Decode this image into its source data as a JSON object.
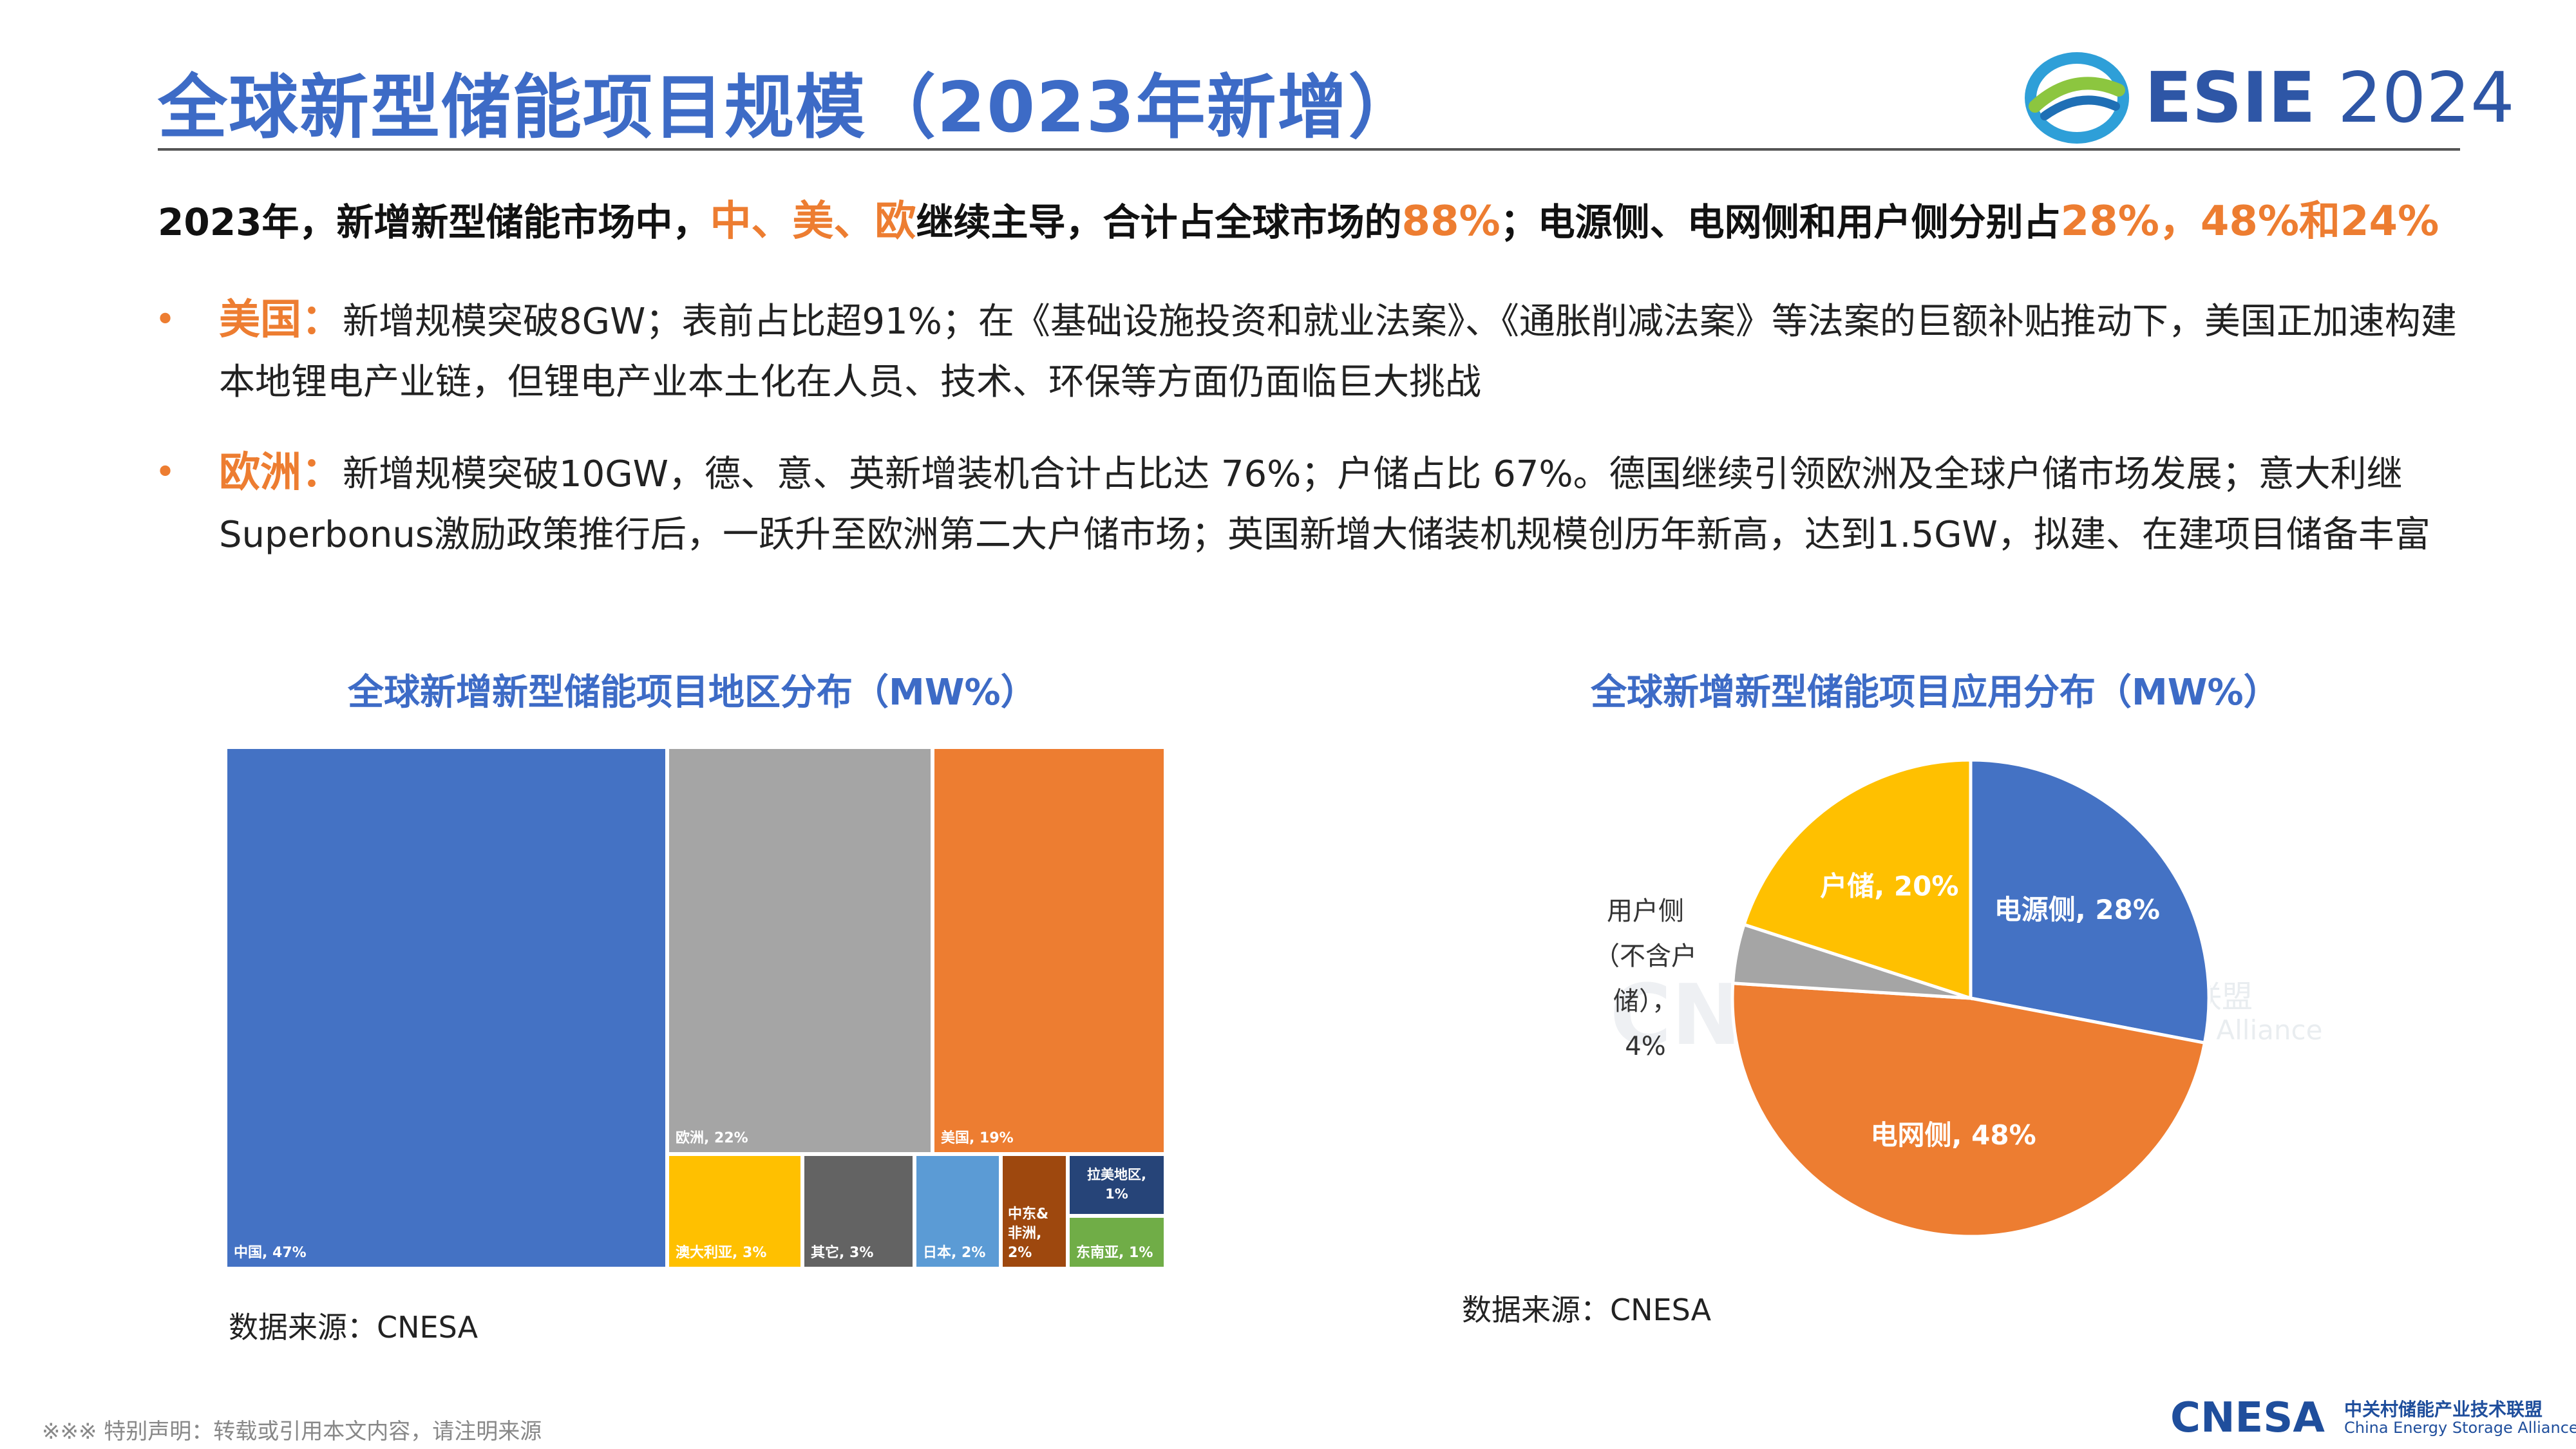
{
  "header": {
    "title": "全球新型储能项目规模（2023年新增）",
    "logo_brand": "ESIE",
    "logo_year": "2024"
  },
  "summary": {
    "part1": "2023年，新增新型储能市场中，",
    "hl1": "中、美、欧",
    "part2": "继续主导，合计占全球市场的",
    "hl2": "88%",
    "part3": "；电源侧、电网侧和用户侧分别占",
    "hl3": "28%，48%和24%"
  },
  "bullets": [
    {
      "label": "美国：",
      "text": "新增规模突破8GW；表前占比超91%；在《基础设施投资和就业法案》、《通胀削减法案》等法案的巨额补贴推动下，美国正加速构建本地锂电产业链，但锂电产业本土化在人员、技术、环保等方面仍面临巨大挑战"
    },
    {
      "label": "欧洲：",
      "text": "新增规模突破10GW，德、意、英新增装机合计占比达 76%；户储占比 67%。德国继续引领欧洲及全球户储市场发展；意大利继Superbonus激励政策推行后，一跃升至欧洲第二大户储市场；英国新增大储装机规模创历年新高，达到1.5GW，拟建、在建项目储备丰富"
    }
  ],
  "bullet_marker": "•",
  "colors": {
    "title_blue": "#3d6bc6",
    "accent_orange": "#ed7d31"
  },
  "chart_data": [
    {
      "type": "treemap",
      "title": "全球新增新型储能项目地区分布（MW%）",
      "items": [
        {
          "label": "中国, 47%",
          "value": 47,
          "color": "#4472c4"
        },
        {
          "label": "欧洲, 22%",
          "value": 22,
          "color": "#a5a5a5"
        },
        {
          "label": "美国, 19%",
          "value": 19,
          "color": "#ed7d31"
        },
        {
          "label": "澳大利亚, 3%",
          "value": 3,
          "color": "#ffc000"
        },
        {
          "label": "其它, 3%",
          "value": 3,
          "color": "#636363"
        },
        {
          "label": "日本, 2%",
          "value": 2,
          "color": "#5b9bd5"
        },
        {
          "label": "中东&非洲, 2%",
          "value": 2,
          "color": "#9e480e"
        },
        {
          "label": "拉美地区, 1%",
          "value": 1,
          "color": "#264478"
        },
        {
          "label": "东南亚, 1%",
          "value": 1,
          "color": "#70ad47"
        }
      ],
      "source": "数据来源：CNESA"
    },
    {
      "type": "pie",
      "title": "全球新增新型储能项目应用分布（MW%）",
      "slices": [
        {
          "label": "电源侧, 28%",
          "value": 28,
          "color": "#4472c4"
        },
        {
          "label": "电网侧, 48%",
          "value": 48,
          "color": "#ed7d31"
        },
        {
          "label": "用户侧（不含户储）, 4%",
          "value": 4,
          "color": "#a5a5a5"
        },
        {
          "label": "户储, 20%",
          "value": 20,
          "color": "#ffc000"
        }
      ],
      "external_label_lines": [
        "用户侧",
        "（不含户储），",
        "4%"
      ],
      "source": "数据来源：CNESA"
    }
  ],
  "watermark": {
    "brand": "CNESA",
    "cn": "中关村储能产业技术联盟",
    "en": "China Energy Storage Alliance"
  },
  "footer": {
    "note": "※※※ 特别声明：转载或引用本文内容，请注明来源",
    "brand": "CNESA",
    "cn": "中关村储能产业技术联盟",
    "en": "China Energy Storage Alliance"
  }
}
